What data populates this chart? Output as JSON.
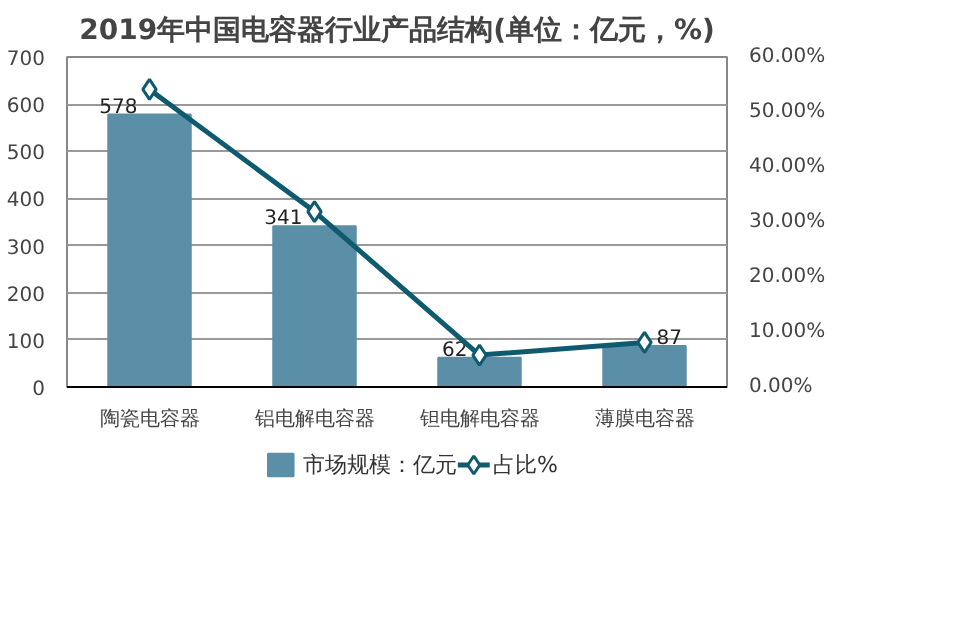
{
  "chart_data": {
    "type": "bar",
    "title": "2019年中国电容器行业产品结构(单位：亿元，%)",
    "categories": [
      "陶瓷电容器",
      "铝电解电容器",
      "钽电解电容器",
      "薄膜电容器"
    ],
    "series": [
      {
        "name": "市场规模：亿元",
        "type": "bar",
        "color": "#5b8fa8",
        "values": [
          578,
          341,
          62,
          87
        ],
        "value_labels": [
          "578",
          "341",
          "62",
          "87"
        ]
      },
      {
        "name": "占比%",
        "type": "line",
        "axis": "y2",
        "color": "#0e5a6e",
        "marker": "diamond",
        "values": [
          54.1,
          31.9,
          5.8,
          8.1
        ]
      }
    ],
    "ylim": [
      0,
      700
    ],
    "yticks": [
      0,
      100,
      200,
      300,
      400,
      500,
      600,
      700
    ],
    "y2lim": [
      0,
      60
    ],
    "y2ticks": [
      {
        "value": 0,
        "label": "0.00%"
      },
      {
        "value": 10,
        "label": "10.00%"
      },
      {
        "value": 20,
        "label": "20.00%"
      },
      {
        "value": 30,
        "label": "30.00%"
      },
      {
        "value": 40,
        "label": "40.00%"
      },
      {
        "value": 50,
        "label": "50.00%"
      },
      {
        "value": 60,
        "label": "60.00%"
      }
    ],
    "grid": "y",
    "legend": "bottom"
  }
}
